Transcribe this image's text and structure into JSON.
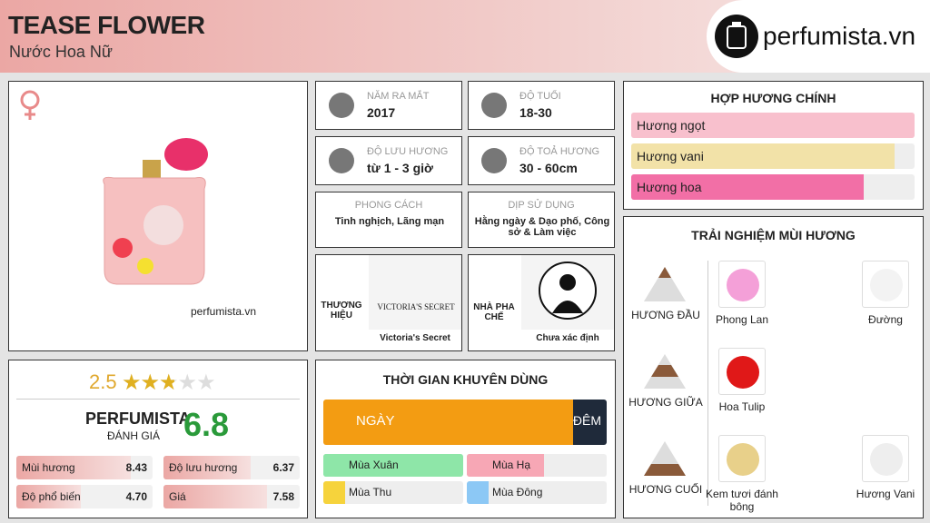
{
  "header": {
    "title": "TEASE FLOWER",
    "subtitle": "Nước Hoa Nữ",
    "brand": "perfumista.vn"
  },
  "product": {
    "watermark": "perfumista.vn"
  },
  "info": [
    {
      "label": "NĂM RA MẮT",
      "value": "2017"
    },
    {
      "label": "ĐỘ TUỔI",
      "value": "18-30"
    },
    {
      "label": "ĐỘ LƯU HƯƠNG",
      "value": "từ 1 - 3 giờ"
    },
    {
      "label": "ĐỘ TOẢ HƯƠNG",
      "value": "30 - 60cm"
    },
    {
      "label": "PHONG CÁCH",
      "value": "Tinh nghịch, Lãng mạn"
    },
    {
      "label": "DỊP SỬ DỤNG",
      "value": "Hằng ngày & Dạo phố, Công sở & Làm việc"
    }
  ],
  "brand": {
    "label": "THƯƠNG HIỆU",
    "logo": "VICTORIA'S SECRET",
    "name": "Victoria's Secret"
  },
  "perfumer": {
    "label": "NHÀ PHA CHẾ",
    "name": "Chưa xác định"
  },
  "rating": {
    "stars": 2.5,
    "title": "PERFUMISTA",
    "subtitle": "ĐÁNH GIÁ",
    "score": 6.8,
    "metrics": [
      {
        "name": "Mùi hương",
        "value": 8.43
      },
      {
        "name": "Độ lưu hương",
        "value": 6.37
      },
      {
        "name": "Độ phổ biến",
        "value": 4.7,
        "label": "4.70"
      },
      {
        "name": "Giá",
        "value": 7.58
      }
    ]
  },
  "accords": {
    "title": "HỢP HƯƠNG CHÍNH",
    "items": [
      {
        "name": "Hương ngọt",
        "value": 100,
        "color": "#f8c0cd"
      },
      {
        "name": "Hương vani",
        "value": 93,
        "color": "#f2e2a8"
      },
      {
        "name": "Hương hoa",
        "value": 82,
        "color": "#f26fa6"
      }
    ]
  },
  "time": {
    "title": "THỜI GIAN KHUYÊN DÙNG",
    "day": {
      "name": "NGÀY",
      "value": 88
    },
    "night": {
      "name": "ĐÊM",
      "value": 12
    },
    "seasons": [
      {
        "name": "Mùa Xuân",
        "value": 100,
        "color": "#8ee6a8"
      },
      {
        "name": "Mùa Hạ",
        "value": 55,
        "color": "#f7a7b5"
      },
      {
        "name": "Mùa Thu",
        "value": 0,
        "color": "#f6d33c"
      },
      {
        "name": "Mùa Đông",
        "value": 0,
        "color": "#8cc8f5"
      }
    ]
  },
  "notes": {
    "title": "TRẢI NGHIỆM MÙI HƯƠNG",
    "levels": [
      {
        "name": "HƯƠNG ĐẦU",
        "items": [
          "Phong Lan",
          "Đường"
        ]
      },
      {
        "name": "HƯƠNG GIỮA",
        "items": [
          "Hoa Tulip"
        ]
      },
      {
        "name": "HƯƠNG CUỐI",
        "items": [
          "Kem tươi đánh bông",
          "Hương Vani"
        ]
      }
    ]
  }
}
